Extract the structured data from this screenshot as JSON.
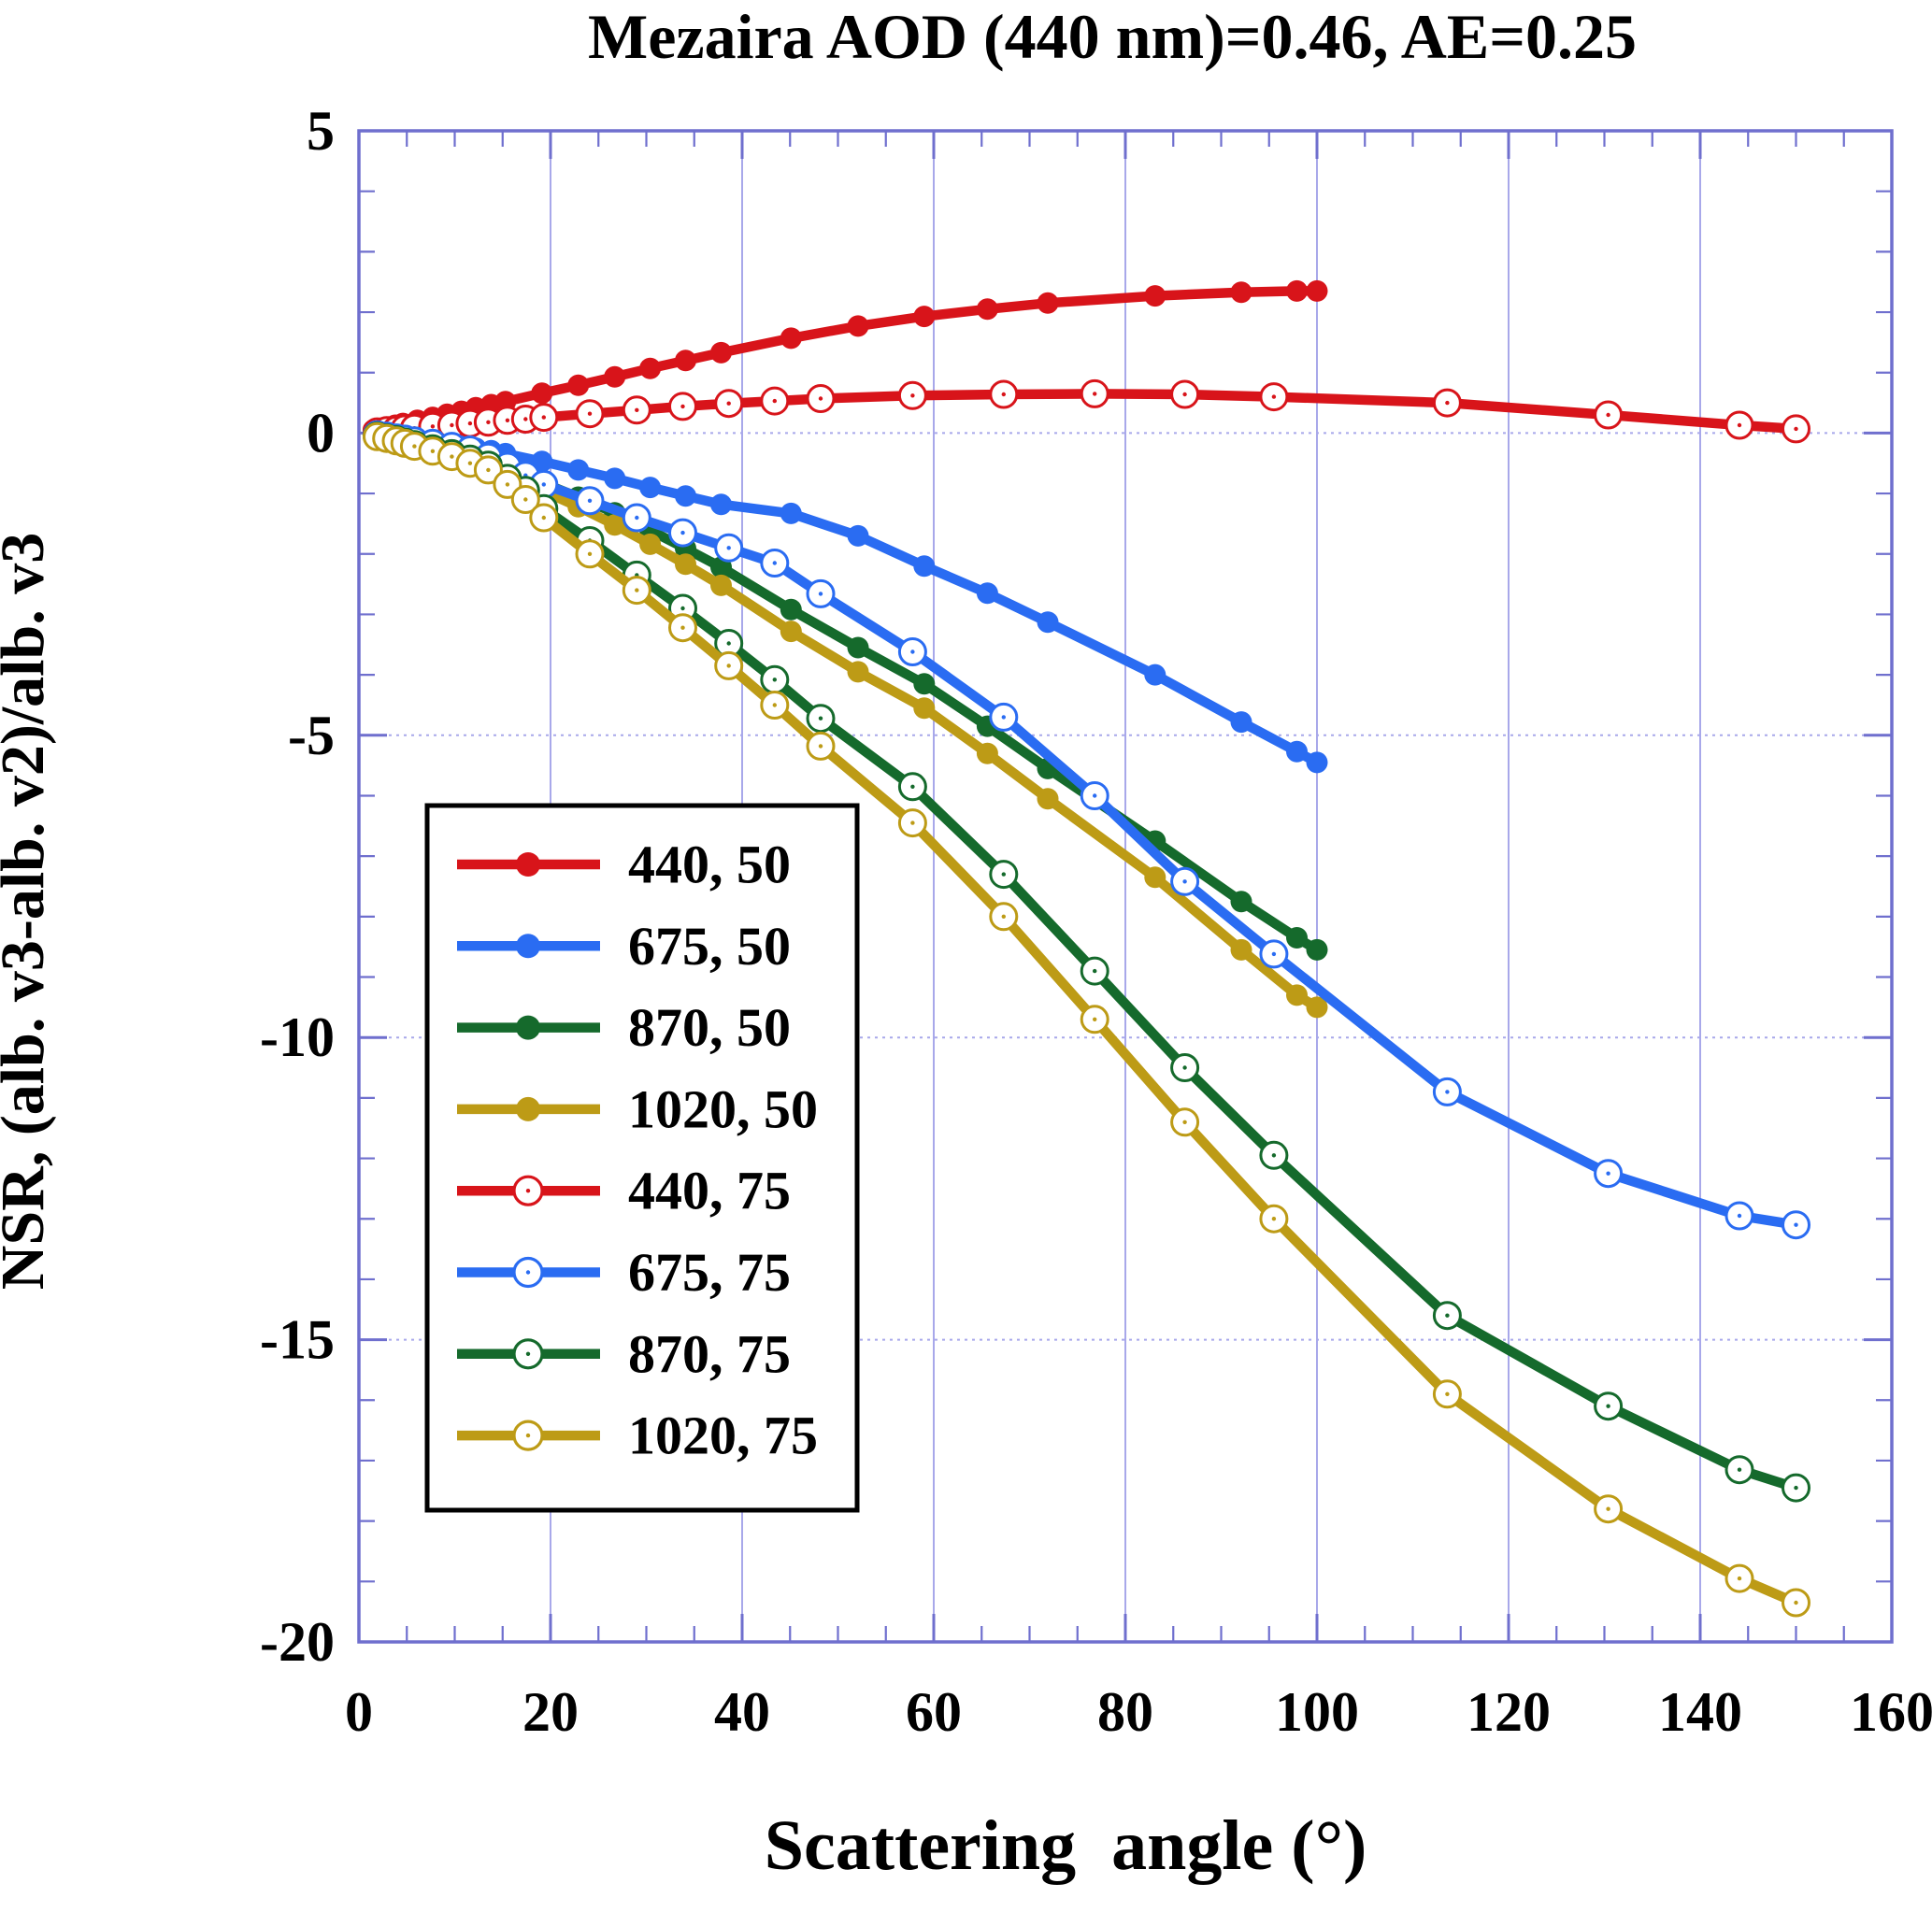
{
  "title": "Mezaira AOD (440 nm)=0.46, AE=0.25",
  "colors": {
    "red": "#d8141a",
    "blue": "#2a6cf2",
    "green": "#156a2c",
    "gold": "#bd9b16",
    "axis": "#6f6fce",
    "grid": "#a8a8ea",
    "text": "#000000",
    "background": "#ffffff",
    "legend_border": "#000000"
  },
  "chart_data": {
    "type": "line",
    "title": "Mezaira AOD (440 nm)=0.46, AE=0.25",
    "xlabel": "Scattering  angle (°)",
    "ylabel": "NSR, (alb. v3-alb. v2)/alb. v3",
    "xlim": [
      0,
      160
    ],
    "ylim": [
      -20,
      5
    ],
    "x_major_ticks": [
      0,
      20,
      40,
      60,
      80,
      100,
      120,
      140,
      160
    ],
    "x_minor_step": 5,
    "y_major_ticks": [
      5,
      0,
      -5,
      -10,
      -15,
      -20
    ],
    "y_minor_step": 1,
    "grid": true,
    "legend_position": "inside-left-middle",
    "series": [
      {
        "label": "440, 50",
        "color": "#d8141a",
        "marker": "filled",
        "points": [
          [
            1.5,
            0.05
          ],
          [
            2.3,
            0.08
          ],
          [
            3.1,
            0.1
          ],
          [
            3.8,
            0.13
          ],
          [
            4.6,
            0.16
          ],
          [
            6.1,
            0.21
          ],
          [
            7.7,
            0.26
          ],
          [
            9.2,
            0.31
          ],
          [
            10.7,
            0.36
          ],
          [
            12.2,
            0.42
          ],
          [
            13.8,
            0.47
          ],
          [
            15.3,
            0.52
          ],
          [
            19.1,
            0.66
          ],
          [
            22.9,
            0.79
          ],
          [
            26.7,
            0.93
          ],
          [
            30.4,
            1.07
          ],
          [
            34.1,
            1.2
          ],
          [
            37.8,
            1.33
          ],
          [
            45.1,
            1.57
          ],
          [
            52.1,
            1.77
          ],
          [
            59.0,
            1.93
          ],
          [
            65.6,
            2.05
          ],
          [
            71.9,
            2.15
          ],
          [
            83.1,
            2.27
          ],
          [
            92.1,
            2.33
          ],
          [
            97.9,
            2.35
          ],
          [
            100.0,
            2.35
          ]
        ]
      },
      {
        "label": "675, 50",
        "color": "#2a6cf2",
        "marker": "filled",
        "points": [
          [
            1.5,
            -0.02
          ],
          [
            2.3,
            -0.04
          ],
          [
            3.1,
            -0.05
          ],
          [
            3.8,
            -0.07
          ],
          [
            4.6,
            -0.08
          ],
          [
            6.1,
            -0.11
          ],
          [
            7.7,
            -0.14
          ],
          [
            9.2,
            -0.18
          ],
          [
            10.7,
            -0.21
          ],
          [
            12.2,
            -0.25
          ],
          [
            13.8,
            -0.29
          ],
          [
            15.3,
            -0.34
          ],
          [
            19.1,
            -0.47
          ],
          [
            22.9,
            -0.61
          ],
          [
            26.7,
            -0.75
          ],
          [
            30.4,
            -0.9
          ],
          [
            34.1,
            -1.04
          ],
          [
            37.8,
            -1.18
          ],
          [
            45.1,
            -1.33
          ],
          [
            52.1,
            -1.7
          ],
          [
            59.0,
            -2.2
          ],
          [
            65.6,
            -2.65
          ],
          [
            71.9,
            -3.13
          ],
          [
            83.1,
            -4.0
          ],
          [
            92.1,
            -4.78
          ],
          [
            97.9,
            -5.27
          ],
          [
            100.0,
            -5.45
          ]
        ]
      },
      {
        "label": "870, 50",
        "color": "#156a2c",
        "marker": "filled",
        "points": [
          [
            1.5,
            -0.03
          ],
          [
            2.3,
            -0.05
          ],
          [
            3.1,
            -0.08
          ],
          [
            3.8,
            -0.11
          ],
          [
            4.6,
            -0.13
          ],
          [
            6.1,
            -0.18
          ],
          [
            7.7,
            -0.24
          ],
          [
            9.2,
            -0.3
          ],
          [
            10.7,
            -0.37
          ],
          [
            12.2,
            -0.44
          ],
          [
            13.8,
            -0.51
          ],
          [
            15.3,
            -0.59
          ],
          [
            19.1,
            -0.82
          ],
          [
            22.9,
            -1.06
          ],
          [
            26.7,
            -1.32
          ],
          [
            30.4,
            -1.61
          ],
          [
            34.1,
            -1.91
          ],
          [
            37.8,
            -2.22
          ],
          [
            45.1,
            -2.92
          ],
          [
            52.1,
            -3.55
          ],
          [
            59.0,
            -4.15
          ],
          [
            65.6,
            -4.85
          ],
          [
            71.9,
            -5.55
          ],
          [
            83.1,
            -6.75
          ],
          [
            92.1,
            -7.75
          ],
          [
            97.9,
            -8.35
          ],
          [
            100.0,
            -8.55
          ]
        ]
      },
      {
        "label": "1020, 50",
        "color": "#bd9b16",
        "marker": "filled",
        "points": [
          [
            1.5,
            -0.04
          ],
          [
            2.3,
            -0.06
          ],
          [
            3.1,
            -0.09
          ],
          [
            3.8,
            -0.13
          ],
          [
            4.6,
            -0.16
          ],
          [
            6.1,
            -0.22
          ],
          [
            7.7,
            -0.29
          ],
          [
            9.2,
            -0.36
          ],
          [
            10.7,
            -0.44
          ],
          [
            12.2,
            -0.52
          ],
          [
            13.8,
            -0.6
          ],
          [
            15.3,
            -0.69
          ],
          [
            19.1,
            -0.95
          ],
          [
            22.9,
            -1.22
          ],
          [
            26.7,
            -1.52
          ],
          [
            30.4,
            -1.84
          ],
          [
            34.1,
            -2.17
          ],
          [
            37.8,
            -2.52
          ],
          [
            45.1,
            -3.28
          ],
          [
            52.1,
            -3.95
          ],
          [
            59.0,
            -4.55
          ],
          [
            65.6,
            -5.3
          ],
          [
            71.9,
            -6.05
          ],
          [
            83.1,
            -7.35
          ],
          [
            92.1,
            -8.55
          ],
          [
            97.9,
            -9.3
          ],
          [
            100.0,
            -9.5
          ]
        ]
      },
      {
        "label": "440, 75",
        "color": "#d8141a",
        "marker": "open",
        "points": [
          [
            1.9,
            0.02
          ],
          [
            2.9,
            0.04
          ],
          [
            3.9,
            0.05
          ],
          [
            4.8,
            0.07
          ],
          [
            5.8,
            0.08
          ],
          [
            7.7,
            0.11
          ],
          [
            9.7,
            0.13
          ],
          [
            11.6,
            0.16
          ],
          [
            13.5,
            0.18
          ],
          [
            15.5,
            0.21
          ],
          [
            17.4,
            0.23
          ],
          [
            19.3,
            0.26
          ],
          [
            24.1,
            0.32
          ],
          [
            29.0,
            0.38
          ],
          [
            33.8,
            0.44
          ],
          [
            38.6,
            0.49
          ],
          [
            43.4,
            0.53
          ],
          [
            48.2,
            0.57
          ],
          [
            57.8,
            0.62
          ],
          [
            67.3,
            0.64
          ],
          [
            76.8,
            0.65
          ],
          [
            86.2,
            0.64
          ],
          [
            95.5,
            0.6
          ],
          [
            113.6,
            0.5
          ],
          [
            130.4,
            0.3
          ],
          [
            144.1,
            0.13
          ],
          [
            150.0,
            0.07
          ]
        ]
      },
      {
        "label": "675, 75",
        "color": "#2a6cf2",
        "marker": "open",
        "points": [
          [
            1.9,
            -0.03
          ],
          [
            2.9,
            -0.05
          ],
          [
            3.9,
            -0.08
          ],
          [
            4.8,
            -0.1
          ],
          [
            5.8,
            -0.13
          ],
          [
            7.7,
            -0.17
          ],
          [
            9.7,
            -0.22
          ],
          [
            11.6,
            -0.28
          ],
          [
            13.5,
            -0.4
          ],
          [
            15.5,
            -0.55
          ],
          [
            17.4,
            -0.7
          ],
          [
            19.3,
            -0.85
          ],
          [
            24.1,
            -1.12
          ],
          [
            29.0,
            -1.4
          ],
          [
            33.8,
            -1.65
          ],
          [
            38.6,
            -1.9
          ],
          [
            43.4,
            -2.15
          ],
          [
            48.2,
            -2.66
          ],
          [
            57.8,
            -3.62
          ],
          [
            67.3,
            -4.7
          ],
          [
            76.8,
            -6.0
          ],
          [
            86.2,
            -7.42
          ],
          [
            95.5,
            -8.62
          ],
          [
            113.6,
            -10.9
          ],
          [
            130.4,
            -12.25
          ],
          [
            144.1,
            -12.95
          ],
          [
            150.0,
            -13.1
          ]
        ]
      },
      {
        "label": "870, 75",
        "color": "#156a2c",
        "marker": "open",
        "points": [
          [
            1.9,
            -0.05
          ],
          [
            2.9,
            -0.08
          ],
          [
            3.9,
            -0.11
          ],
          [
            4.8,
            -0.15
          ],
          [
            5.8,
            -0.19
          ],
          [
            7.7,
            -0.26
          ],
          [
            9.7,
            -0.34
          ],
          [
            11.6,
            -0.43
          ],
          [
            13.5,
            -0.53
          ],
          [
            15.5,
            -0.75
          ],
          [
            17.4,
            -0.95
          ],
          [
            19.3,
            -1.25
          ],
          [
            24.1,
            -1.78
          ],
          [
            29.0,
            -2.35
          ],
          [
            33.8,
            -2.9
          ],
          [
            38.6,
            -3.48
          ],
          [
            43.4,
            -4.08
          ],
          [
            48.2,
            -4.72
          ],
          [
            57.8,
            -5.85
          ],
          [
            67.3,
            -7.3
          ],
          [
            76.8,
            -8.9
          ],
          [
            86.2,
            -10.5
          ],
          [
            95.5,
            -11.95
          ],
          [
            113.6,
            -14.6
          ],
          [
            130.4,
            -16.1
          ],
          [
            144.1,
            -17.15
          ],
          [
            150.0,
            -17.45
          ]
        ]
      },
      {
        "label": "1020, 75",
        "color": "#bd9b16",
        "marker": "open",
        "points": [
          [
            1.9,
            -0.06
          ],
          [
            2.9,
            -0.09
          ],
          [
            3.9,
            -0.13
          ],
          [
            4.8,
            -0.17
          ],
          [
            5.8,
            -0.22
          ],
          [
            7.7,
            -0.3
          ],
          [
            9.7,
            -0.39
          ],
          [
            11.6,
            -0.5
          ],
          [
            13.5,
            -0.61
          ],
          [
            15.5,
            -0.85
          ],
          [
            17.4,
            -1.1
          ],
          [
            19.3,
            -1.4
          ],
          [
            24.1,
            -2.0
          ],
          [
            29.0,
            -2.6
          ],
          [
            33.8,
            -3.22
          ],
          [
            38.6,
            -3.85
          ],
          [
            43.4,
            -4.5
          ],
          [
            48.2,
            -5.18
          ],
          [
            57.8,
            -6.45
          ],
          [
            67.3,
            -8.0
          ],
          [
            76.8,
            -9.7
          ],
          [
            86.2,
            -11.4
          ],
          [
            95.5,
            -13.0
          ],
          [
            113.6,
            -15.9
          ],
          [
            130.4,
            -17.8
          ],
          [
            144.1,
            -18.95
          ],
          [
            150.0,
            -19.35
          ]
        ]
      }
    ]
  }
}
